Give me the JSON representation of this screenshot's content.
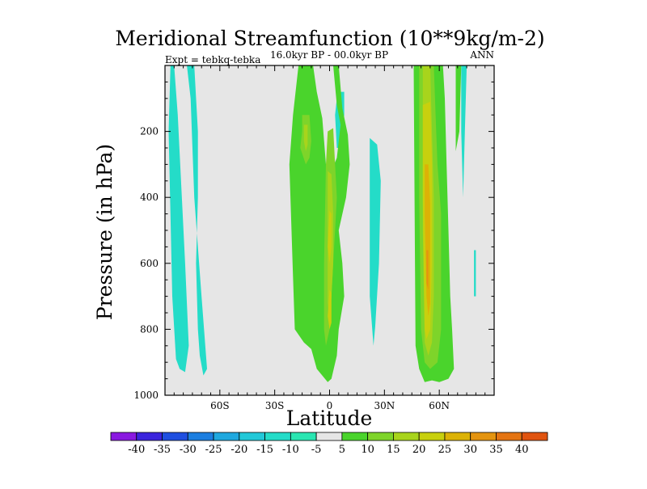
{
  "chart_data": {
    "type": "filled-contour",
    "title": "Meridional Streamfunction (10**9kg/m-2)",
    "subtitle": "16.0kyr BP - 00.0kyr BP",
    "left_label": "Expt = tebkq-tebka",
    "right_label": "ANN",
    "xlabel": "Latitude",
    "ylabel": "Pressure (in hPa)",
    "xlim": [
      -90,
      90
    ],
    "ylim": [
      0,
      1000
    ],
    "y_inverted": true,
    "x_ticks": [
      {
        "value": -60,
        "label": "60S"
      },
      {
        "value": -30,
        "label": "30S"
      },
      {
        "value": 0,
        "label": "0"
      },
      {
        "value": 30,
        "label": "30N"
      },
      {
        "value": 60,
        "label": "60N"
      }
    ],
    "y_ticks": [
      {
        "value": 200,
        "label": "200"
      },
      {
        "value": 400,
        "label": "400"
      },
      {
        "value": 600,
        "label": "600"
      },
      {
        "value": 800,
        "label": "800"
      },
      {
        "value": 1000,
        "label": "1000"
      }
    ],
    "background_color": "#e6e6e6",
    "colorbar": {
      "levels": [
        -40,
        -35,
        -30,
        -25,
        -20,
        -15,
        -10,
        -5,
        5,
        10,
        15,
        20,
        25,
        30,
        35,
        40
      ],
      "colors": [
        "#8a19e0",
        "#3b24dd",
        "#1f4fe0",
        "#1c7ee0",
        "#1fa8df",
        "#22c8d8",
        "#24dcc8",
        "#2ae6b2",
        "#e6e6e6",
        "#4ad42c",
        "#7ed42a",
        "#a8d41c",
        "#c8d00e",
        "#dcb206",
        "#e49410",
        "#e47412",
        "#e05410"
      ]
    },
    "regions": [
      {
        "level": -10,
        "lat": [
          -87,
          -85,
          -83,
          -79,
          -77,
          -79,
          -82,
          -84,
          -86,
          -88
        ],
        "p": [
          0,
          0,
          150,
          600,
          850,
          930,
          920,
          890,
          700,
          200
        ]
      },
      {
        "level": -10,
        "lat": [
          -78,
          -74,
          -72,
          -72,
          -73,
          -72,
          -71,
          -69,
          -67,
          -70,
          -74,
          -76
        ],
        "p": [
          0,
          0,
          200,
          400,
          600,
          800,
          880,
          940,
          920,
          700,
          400,
          100
        ]
      },
      {
        "level": -10,
        "lat": [
          5,
          8,
          8,
          6,
          4,
          3,
          4
        ],
        "p": [
          80,
          80,
          150,
          250,
          250,
          150,
          100
        ]
      },
      {
        "level": -10,
        "lat": [
          22,
          26,
          28,
          27,
          25,
          24,
          22,
          22
        ],
        "p": [
          220,
          240,
          350,
          600,
          790,
          850,
          700,
          400
        ]
      },
      {
        "level": -10,
        "lat": [
          72,
          75,
          74,
          73,
          72
        ],
        "p": [
          0,
          0,
          200,
          400,
          200
        ]
      },
      {
        "level": -10,
        "lat": [
          79,
          80,
          80,
          79
        ],
        "p": [
          560,
          560,
          700,
          700
        ]
      },
      {
        "level": 5,
        "lat": [
          -17,
          -9,
          -7,
          -4,
          -2,
          1,
          4,
          6,
          4,
          2,
          5,
          7,
          10,
          11,
          9,
          5,
          7,
          8,
          5,
          4,
          1,
          -1,
          -7,
          -10,
          -14,
          -19,
          -20,
          -22,
          -20
        ],
        "p": [
          0,
          0,
          80,
          160,
          300,
          320,
          280,
          180,
          120,
          0,
          0,
          130,
          210,
          300,
          400,
          500,
          600,
          700,
          800,
          880,
          950,
          960,
          920,
          860,
          840,
          800,
          640,
          300,
          150
        ]
      },
      {
        "level": 5,
        "lat": [
          46,
          62,
          63,
          64,
          65,
          66,
          67,
          68,
          65,
          60,
          56,
          52,
          49,
          47
        ],
        "p": [
          0,
          0,
          100,
          300,
          500,
          700,
          800,
          920,
          950,
          960,
          955,
          960,
          920,
          850
        ]
      },
      {
        "level": 5,
        "lat": [
          69,
          72,
          71,
          69
        ],
        "p": [
          0,
          0,
          200,
          260
        ]
      },
      {
        "level": 10,
        "lat": [
          -15,
          -11,
          -10,
          -11,
          -13,
          -16,
          -15
        ],
        "p": [
          150,
          150,
          230,
          280,
          300,
          250,
          200
        ]
      },
      {
        "level": 10,
        "lat": [
          -1,
          2,
          3,
          4,
          3,
          2,
          1,
          0,
          -2,
          -3,
          -3,
          -2
        ],
        "p": [
          200,
          190,
          300,
          400,
          500,
          600,
          700,
          800,
          850,
          800,
          600,
          300
        ]
      },
      {
        "level": 10,
        "lat": [
          49,
          57,
          58,
          59,
          61,
          61,
          59,
          55,
          52,
          50,
          49
        ],
        "p": [
          0,
          0,
          150,
          300,
          450,
          800,
          900,
          920,
          900,
          800,
          400
        ]
      },
      {
        "level": 15,
        "lat": [
          -14,
          -12,
          -12,
          -13,
          -14
        ],
        "p": [
          180,
          180,
          240,
          260,
          230
        ]
      },
      {
        "level": 15,
        "lat": [
          -1,
          1,
          2,
          2,
          1,
          0,
          -1,
          -1
        ],
        "p": [
          320,
          330,
          450,
          600,
          700,
          780,
          720,
          500
        ]
      },
      {
        "level": 15,
        "lat": [
          51,
          55,
          56,
          57,
          57,
          56,
          54,
          52,
          51
        ],
        "p": [
          0,
          0,
          200,
          400,
          700,
          840,
          880,
          840,
          500
        ]
      },
      {
        "level": 20,
        "lat": [
          0,
          1,
          1,
          0,
          -1
        ],
        "p": [
          440,
          450,
          550,
          600,
          550
        ]
      },
      {
        "level": 20,
        "lat": [
          0,
          1,
          1,
          0,
          -1
        ],
        "p": [
          680,
          690,
          780,
          800,
          760
        ]
      },
      {
        "level": 20,
        "lat": [
          51,
          55,
          56,
          56,
          55,
          53,
          52,
          51
        ],
        "p": [
          120,
          110,
          300,
          600,
          800,
          830,
          800,
          400
        ]
      },
      {
        "level": 25,
        "lat": [
          52,
          54,
          55,
          55,
          54,
          53,
          52
        ],
        "p": [
          300,
          300,
          420,
          720,
          760,
          700,
          450
        ]
      },
      {
        "level": 30,
        "lat": [
          53,
          54,
          54,
          53
        ],
        "p": [
          560,
          560,
          680,
          660
        ]
      }
    ]
  }
}
